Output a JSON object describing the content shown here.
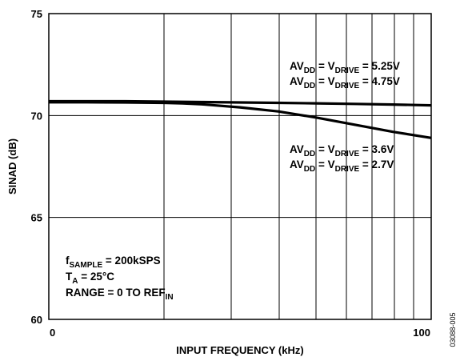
{
  "chart_data": {
    "type": "line",
    "xlabel": "INPUT FREQUENCY (kHz)",
    "ylabel": "SINAD (dB)",
    "xlim": [
      0,
      100
    ],
    "ylim": [
      60,
      75
    ],
    "x_ticks": [
      "0",
      "100"
    ],
    "y_ticks": [
      "75",
      "70",
      "65",
      "60"
    ],
    "grid": true,
    "series": [
      {
        "x": [
          0,
          10,
          20,
          30,
          40,
          50,
          60,
          70,
          80,
          90,
          100
        ],
        "values": [
          70.7,
          70.7,
          70.7,
          70.68,
          70.66,
          70.64,
          70.62,
          70.6,
          70.57,
          70.54,
          70.5
        ]
      },
      {
        "x": [
          0,
          10,
          20,
          30,
          35,
          40,
          50,
          60,
          70,
          80,
          90,
          100
        ],
        "values": [
          70.65,
          70.65,
          70.64,
          70.62,
          70.6,
          70.55,
          70.4,
          70.2,
          69.9,
          69.55,
          69.2,
          68.9
        ]
      }
    ],
    "annotations": {
      "high_supply": [
        {
          "pre": "AV",
          "sub1": "DD",
          "mid": " = V",
          "sub2": "DRIVE",
          "post": " = 5.25V"
        },
        {
          "pre": "AV",
          "sub1": "DD",
          "mid": " = V",
          "sub2": "DRIVE",
          "post": " = 4.75V"
        }
      ],
      "low_supply": [
        {
          "pre": "AV",
          "sub1": "DD",
          "mid": " = V",
          "sub2": "DRIVE",
          "post": " = 3.6V"
        },
        {
          "pre": "AV",
          "sub1": "DD",
          "mid": " = V",
          "sub2": "DRIVE",
          "post": " = 2.7V"
        }
      ],
      "conditions": [
        {
          "pre": "f",
          "sub": "SAMPLE",
          "post": " = 200kSPS"
        },
        {
          "pre": "T",
          "sub": "A",
          "post": " = 25°C"
        },
        {
          "pre": "RANGE = 0 TO REF",
          "sub": "IN",
          "post": ""
        }
      ]
    },
    "figure_id": "03088-005"
  }
}
